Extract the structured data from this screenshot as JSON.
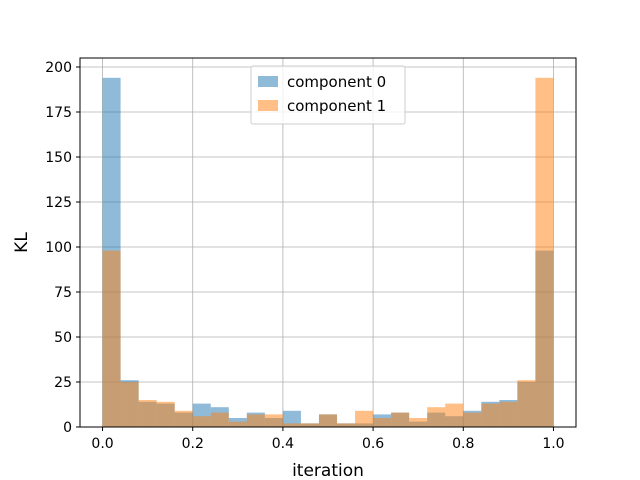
{
  "chart_data": {
    "type": "histogram",
    "xlabel": "iteration",
    "ylabel": "KL",
    "xlim": [
      -0.05,
      1.05
    ],
    "ylim": [
      0,
      205
    ],
    "xticks": [
      0.0,
      0.2,
      0.4,
      0.6,
      0.8,
      1.0
    ],
    "xtick_labels": [
      "0.0",
      "0.2",
      "0.4",
      "0.6",
      "0.8",
      "1.0"
    ],
    "yticks": [
      0,
      25,
      50,
      75,
      100,
      125,
      150,
      175,
      200
    ],
    "ytick_labels": [
      "0",
      "25",
      "50",
      "75",
      "100",
      "125",
      "150",
      "175",
      "200"
    ],
    "grid": true,
    "legend_position": "upper center",
    "bin_edges": [
      0.0,
      0.04,
      0.08,
      0.12,
      0.16,
      0.2,
      0.24,
      0.28,
      0.32,
      0.36,
      0.4,
      0.44,
      0.48,
      0.52,
      0.56,
      0.6,
      0.64,
      0.68,
      0.72,
      0.76,
      0.8,
      0.84,
      0.88,
      0.92,
      0.96,
      1.0
    ],
    "series": [
      {
        "name": "component 0",
        "color": "#1f77b4",
        "alpha": 0.5,
        "values": [
          194,
          26,
          14,
          13,
          8,
          13,
          11,
          5,
          8,
          5,
          9,
          2,
          7,
          2,
          2,
          7,
          8,
          3,
          8,
          6,
          9,
          14,
          15,
          25,
          98
        ]
      },
      {
        "name": "component 1",
        "color": "#ff7f0e",
        "alpha": 0.5,
        "values": [
          98,
          25,
          15,
          14,
          9,
          6,
          8,
          3,
          7,
          7,
          2,
          2,
          7,
          2,
          9,
          5,
          8,
          5,
          11,
          13,
          8,
          13,
          14,
          26,
          194
        ]
      }
    ]
  }
}
